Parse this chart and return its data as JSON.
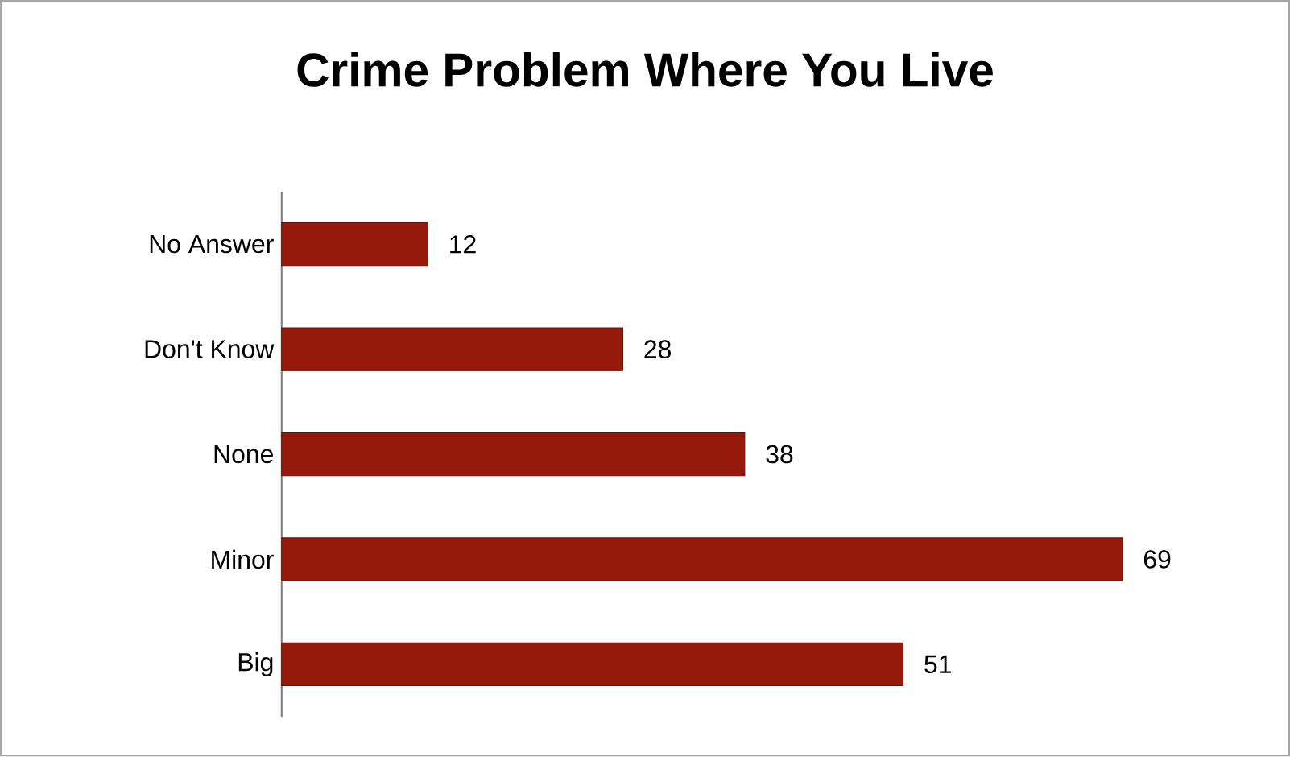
{
  "chart_data": {
    "type": "bar",
    "orientation": "horizontal",
    "title": "Crime Problem Where You Live",
    "categories": [
      "No Answer",
      "Don't Know",
      "None",
      "Minor",
      "Big"
    ],
    "values": [
      12,
      28,
      38,
      69,
      51
    ],
    "color": "#961a0b",
    "data_labels": true
  }
}
